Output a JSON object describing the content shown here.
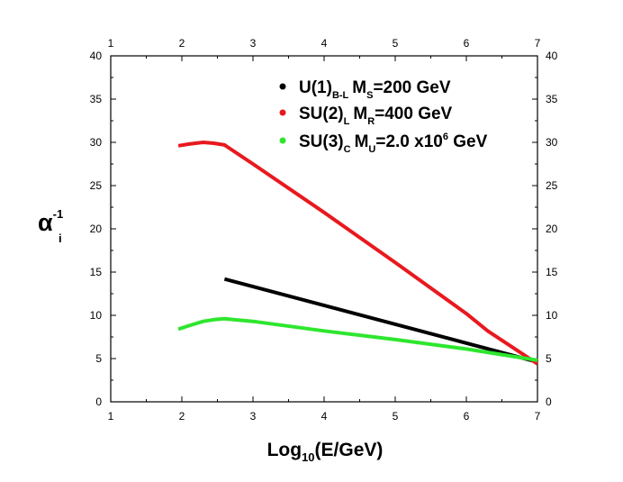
{
  "chart_data": {
    "type": "line",
    "xlabel": {
      "main": "Log",
      "sub": "10",
      "rest": "(E/GeV)"
    },
    "ylabel": {
      "main": "α",
      "sup": "-1",
      "sub": "i"
    },
    "xlim": [
      1,
      7
    ],
    "ylim": [
      0,
      40
    ],
    "x_ticks": [
      1,
      2,
      3,
      4,
      5,
      6,
      7
    ],
    "y_ticks": [
      0,
      5,
      10,
      15,
      20,
      25,
      30,
      35,
      40
    ],
    "grid": false,
    "legend_position": "top-right",
    "series": [
      {
        "name": "U(1)_B-L",
        "color": "#000000",
        "legend": {
          "label": "U(1)",
          "label_sub": "B-L",
          "scale": "M",
          "scale_sub": "S",
          "value": "=200 GeV"
        },
        "points": [
          [
            2.6,
            14.2
          ],
          [
            7.0,
            4.6
          ]
        ]
      },
      {
        "name": "SU(2)_L",
        "color": "#e8191e",
        "legend": {
          "label": "SU(2)",
          "label_sub": "L",
          "scale": "M",
          "scale_sub": "R",
          "value": "=400 GeV"
        },
        "points": [
          [
            1.95,
            29.6
          ],
          [
            2.1,
            29.8
          ],
          [
            2.3,
            30.0
          ],
          [
            2.45,
            29.9
          ],
          [
            2.6,
            29.7
          ],
          [
            3.0,
            27.5
          ],
          [
            4.0,
            21.9
          ],
          [
            5.0,
            16.1
          ],
          [
            6.0,
            10.2
          ],
          [
            6.3,
            8.2
          ],
          [
            7.0,
            4.4
          ]
        ]
      },
      {
        "name": "SU(3)_C",
        "color": "#2ee62e",
        "legend": {
          "label": "SU(3)",
          "label_sub": "C",
          "scale": "M",
          "scale_sub": "U",
          "value_pre": "=2.0 x10",
          "value_sup": "6",
          "value_post": " GeV"
        },
        "points": [
          [
            1.95,
            8.4
          ],
          [
            2.1,
            8.8
          ],
          [
            2.3,
            9.3
          ],
          [
            2.45,
            9.5
          ],
          [
            2.6,
            9.6
          ],
          [
            3.0,
            9.3
          ],
          [
            4.0,
            8.2
          ],
          [
            5.0,
            7.2
          ],
          [
            6.0,
            6.1
          ],
          [
            7.0,
            4.8
          ]
        ]
      }
    ]
  }
}
